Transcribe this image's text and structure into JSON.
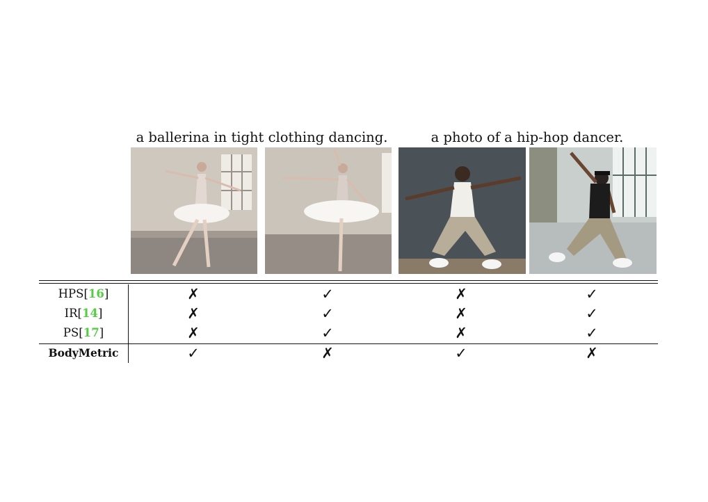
{
  "captions": [
    "a ballerina in tight clothing dancing.",
    "a photo of a hip-hop dancer."
  ],
  "images": [
    {
      "subject": "ballerina in white tutu, arabesque pose, bright studio"
    },
    {
      "subject": "ballerina in white tutu, arm raised, bright studio"
    },
    {
      "subject": "hip-hop dancer, white tee, khaki pants, dark backdrop"
    },
    {
      "subject": "hip-hop dancer, black tee and cap, hallway with windows"
    }
  ],
  "rows": [
    {
      "label": "HPS",
      "cite_open": "[",
      "cite": "16",
      "cite_close": "]",
      "marks": [
        "✗",
        "✓",
        "✗",
        "✓"
      ]
    },
    {
      "label": "IR",
      "cite_open": "[",
      "cite": "14",
      "cite_close": "]",
      "marks": [
        "✗",
        "✓",
        "✗",
        "✓"
      ]
    },
    {
      "label": "PS",
      "cite_open": "[",
      "cite": "17",
      "cite_close": "]",
      "marks": [
        "✗",
        "✓",
        "✗",
        "✓"
      ]
    },
    {
      "label": "BodyMetric",
      "marks": [
        "✓",
        "✗",
        "✓",
        "✗"
      ]
    }
  ],
  "colors": {
    "citation": "#55cc44",
    "text": "#111111"
  }
}
